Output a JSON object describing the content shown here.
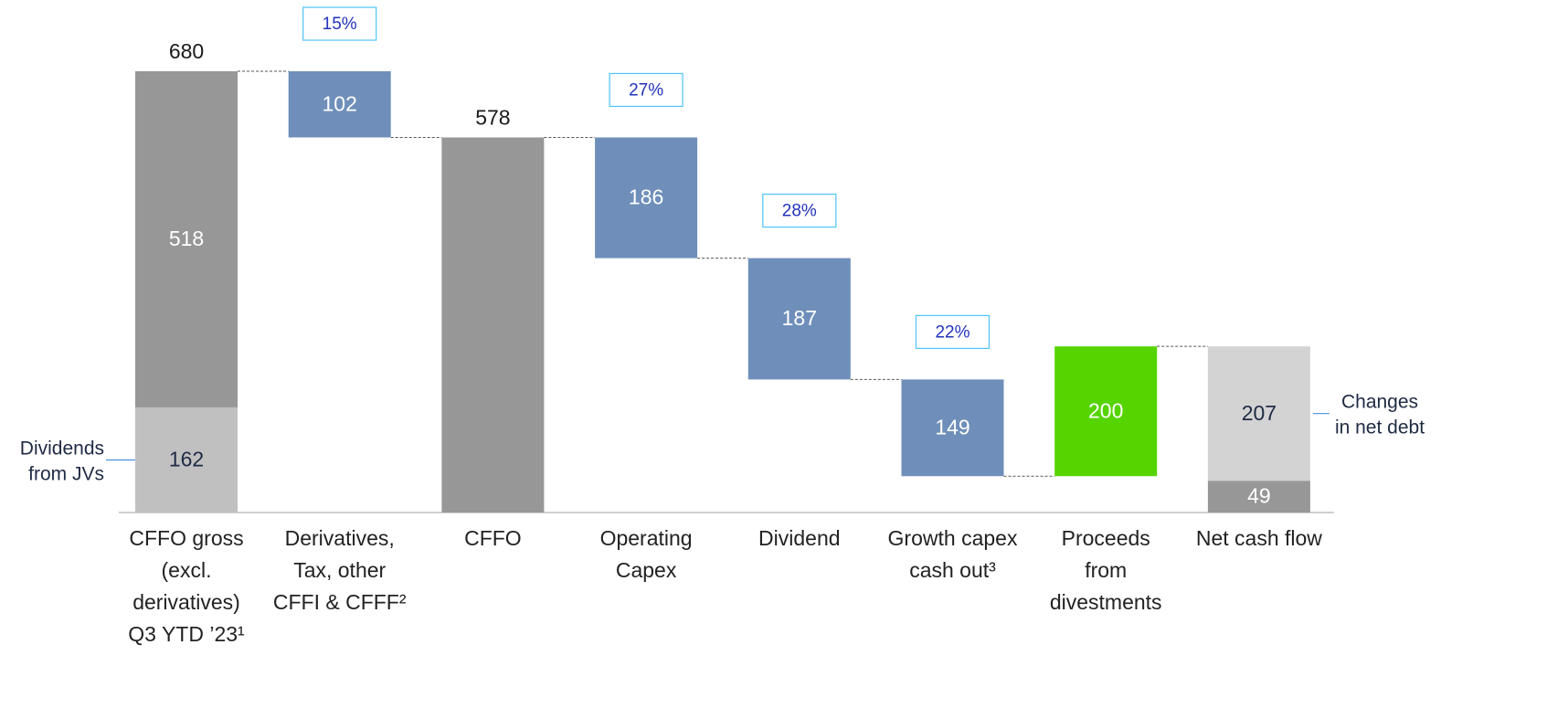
{
  "chart_data": {
    "type": "waterfall",
    "categories": [
      [
        "CFFO gross",
        "(excl.",
        "derivatives)",
        "Q3 YTD ’23¹"
      ],
      [
        "Derivatives,",
        "Tax, other",
        "CFFI & CFFF²"
      ],
      [
        "CFFO"
      ],
      [
        "Operating",
        "Capex"
      ],
      [
        "Dividend"
      ],
      [
        "Growth capex",
        "cash out³"
      ],
      [
        "Proceeds",
        "from",
        "divestments"
      ],
      [
        "Net cash flow"
      ]
    ],
    "bars": [
      {
        "kind": "total",
        "total": 680,
        "segments": [
          {
            "value": 162,
            "color": "#c0c0c0",
            "text_color": "#1f2a44"
          },
          {
            "value": 518,
            "color": "#979797",
            "text_color": "#ffffff"
          }
        ]
      },
      {
        "kind": "decrease",
        "share": {
          "value": 15,
          "label": "15%"
        },
        "segments": [
          {
            "value": 102,
            "color": "#6f8fba",
            "text_color": "#ffffff"
          }
        ]
      },
      {
        "kind": "total",
        "segments": [
          {
            "value": 578,
            "color": "#979797",
            "text_color": "#1f2a44",
            "label": "above"
          }
        ]
      },
      {
        "kind": "decrease",
        "share": {
          "value": 27,
          "label": "27%"
        },
        "segments": [
          {
            "value": 186,
            "color": "#6f8fba",
            "text_color": "#ffffff"
          }
        ]
      },
      {
        "kind": "decrease",
        "share": {
          "value": 28,
          "label": "28%"
        },
        "segments": [
          {
            "value": 187,
            "color": "#6f8fba",
            "text_color": "#ffffff"
          }
        ]
      },
      {
        "kind": "decrease",
        "share": {
          "value": 22,
          "label": "22%"
        },
        "segments": [
          {
            "value": 149,
            "color": "#6f8fba",
            "text_color": "#ffffff"
          }
        ]
      },
      {
        "kind": "increase",
        "segments": [
          {
            "value": 200,
            "color": "#55d400",
            "text_color": "#ffffff"
          }
        ]
      },
      {
        "kind": "total",
        "segments": [
          {
            "value": 49,
            "color": "#979797",
            "text_color": "#ffffff"
          },
          {
            "value": 207,
            "color": "#d3d3d3",
            "text_color": "#1f2a44"
          }
        ]
      }
    ],
    "annotations": [
      {
        "lines": [
          "Dividends",
          "from JVs"
        ],
        "bar": 0,
        "segment": 0,
        "side": "left"
      },
      {
        "lines": [
          "Changes",
          "in net debt"
        ],
        "bar": 7,
        "segment": 1,
        "side": "right"
      }
    ]
  }
}
